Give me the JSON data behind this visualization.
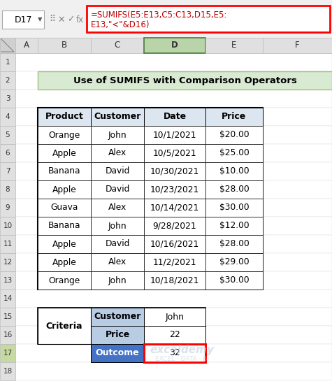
{
  "formula_bar_cell": "D17",
  "title": "Use of SUMIFS with Comparison Operators",
  "title_bg": "#d9ead3",
  "title_border": "#9fc17a",
  "col_headers": [
    "A",
    "B",
    "C",
    "D",
    "E",
    "F"
  ],
  "main_table_headers": [
    "Product",
    "Customer",
    "Date",
    "Price"
  ],
  "main_table_header_bg": "#dce6f1",
  "main_table_data": [
    [
      "Orange",
      "John",
      "10/1/2021",
      "$20.00"
    ],
    [
      "Apple",
      "Alex",
      "10/5/2021",
      "$25.00"
    ],
    [
      "Banana",
      "David",
      "10/30/2021",
      "$10.00"
    ],
    [
      "Apple",
      "David",
      "10/23/2021",
      "$28.00"
    ],
    [
      "Guava",
      "Alex",
      "10/14/2021",
      "$30.00"
    ],
    [
      "Banana",
      "John",
      "9/28/2021",
      "$12.00"
    ],
    [
      "Apple",
      "David",
      "10/16/2021",
      "$28.00"
    ],
    [
      "Apple",
      "Alex",
      "11/2/2021",
      "$29.00"
    ],
    [
      "Orange",
      "John",
      "10/18/2021",
      "$30.00"
    ]
  ],
  "criteria_label": "Criteria",
  "criteria_key_bg": "#b8cce4",
  "criteria_key_color": "#000000",
  "criteria_outcome_bg": "#4472c4",
  "criteria_outcome_color": "#ffffff",
  "criteria_rows": [
    {
      "key": "Customer",
      "value": "John"
    },
    {
      "key": "Price",
      "value": "22"
    }
  ],
  "outcome_key": "Outcome",
  "outcome_value": "32",
  "outcome_border": "#ff0000",
  "formula_line1": "=SUMIFS(E5:E13,C5:C13,D15,E5:",
  "formula_line2": "E13,\"<\"&D16)",
  "formula_color": "#c00000",
  "formula_bar_border": "#ff0000",
  "bg_color": "#ffffff",
  "formula_bar_bg": "#f0f0f0",
  "col_header_bg_normal": "#e0e0e0",
  "col_header_bg_selected": "#b8d4a8",
  "row_header_bg": "#e0e0e0",
  "row_17_header_bg": "#c5d9a0",
  "grid_line_color": "#d0d0d0",
  "watermark1": "exceldemy",
  "watermark2": "EXCEL · DATA · BI"
}
